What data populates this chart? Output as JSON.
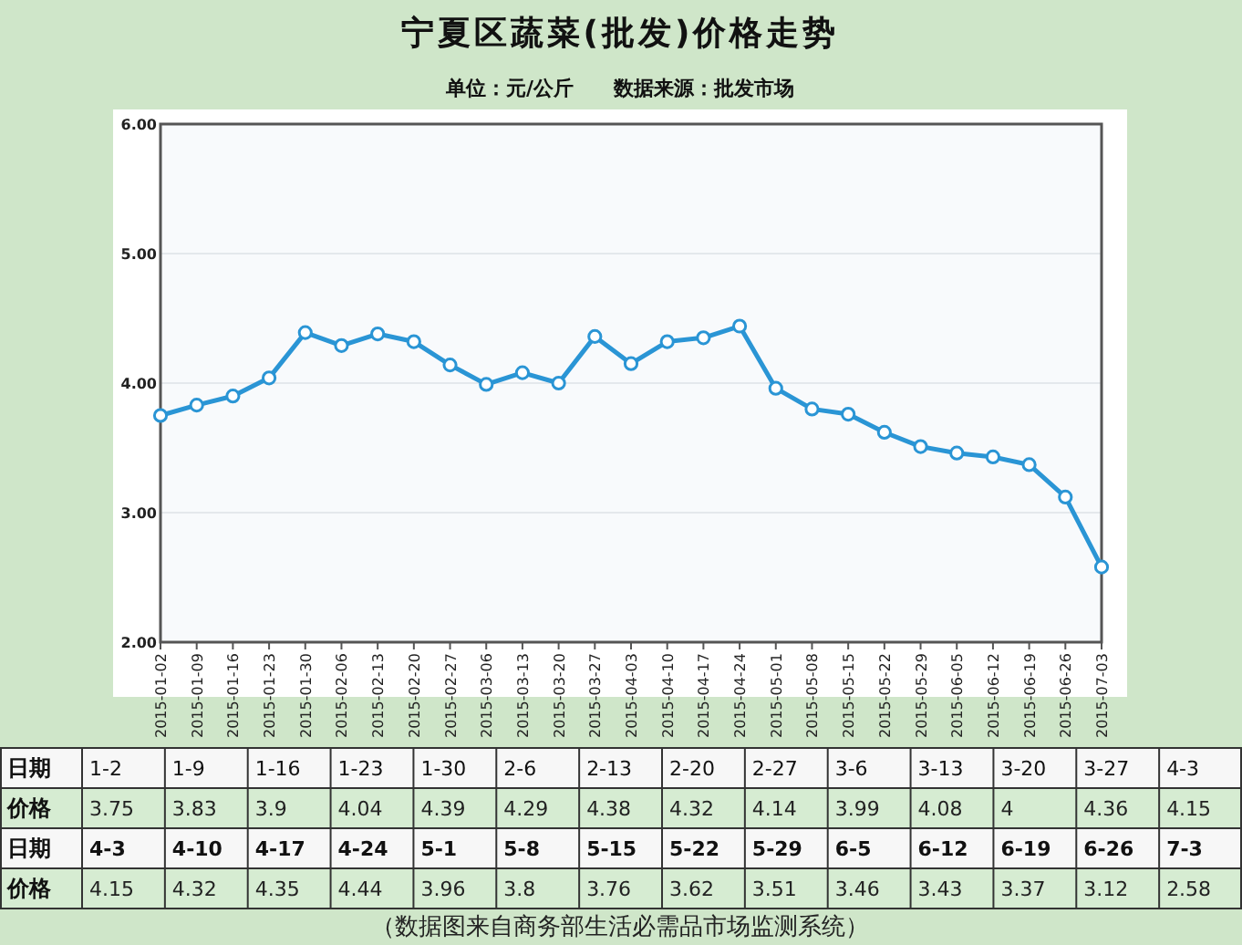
{
  "chart_data": [
    {
      "type": "line",
      "title": "宁夏区蔬菜(批发)价格走势",
      "subtitle": "单位：元/公斤　　数据来源：批发市场",
      "categories": [
        "2015-01-02",
        "2015-01-09",
        "2015-01-16",
        "2015-01-23",
        "2015-01-30",
        "2015-02-06",
        "2015-02-13",
        "2015-02-20",
        "2015-02-27",
        "2015-03-06",
        "2015-03-13",
        "2015-03-20",
        "2015-03-27",
        "2015-04-03",
        "2015-04-10",
        "2015-04-17",
        "2015-04-24",
        "2015-05-01",
        "2015-05-08",
        "2015-05-15",
        "2015-05-22",
        "2015-05-29",
        "2015-06-05",
        "2015-06-12",
        "2015-06-19",
        "2015-06-26",
        "2015-07-03"
      ],
      "series": [
        {
          "color": "#2a95d5",
          "values": [
            3.75,
            3.83,
            3.9,
            4.04,
            4.39,
            4.29,
            4.38,
            4.32,
            4.14,
            3.99,
            4.08,
            4,
            4.36,
            4.15,
            4.32,
            4.35,
            4.44,
            3.96,
            3.8,
            3.76,
            3.62,
            3.51,
            3.46,
            3.43,
            3.37,
            3.12,
            2.58
          ]
        }
      ],
      "ylim": [
        2,
        6
      ],
      "yticks": [
        {
          "value": 2,
          "label": "2.00"
        },
        {
          "value": 3,
          "label": "3.00"
        },
        {
          "value": 4,
          "label": "4.00"
        },
        {
          "value": 5,
          "label": "5.00"
        },
        {
          "value": 6,
          "label": "6.00"
        }
      ],
      "grid": "y",
      "marker": "circle"
    },
    {
      "type": "other",
      "categories": [
        "1-2",
        "1-9",
        "1-16",
        "1-23",
        "1-30",
        "2-6",
        "2-13",
        "2-20",
        "2-27",
        "3-6",
        "3-13",
        "3-20",
        "3-27",
        "4-3",
        "4-3",
        "4-10",
        "4-17",
        "4-24",
        "5-1",
        "5-8",
        "5-15",
        "5-22",
        "5-29",
        "6-5",
        "6-12",
        "6-19",
        "6-26",
        "7-3"
      ],
      "value_labels": [
        "3.75",
        "3.83",
        "3.9",
        "4.04",
        "4.39",
        "4.29",
        "4.38",
        "4.32",
        "4.14",
        "3.99",
        "4.08",
        "4",
        "4.36",
        "4.15",
        "4.15",
        "4.32",
        "4.35",
        "4.44",
        "3.96",
        "3.8",
        "3.76",
        "3.62",
        "3.51",
        "3.46",
        "3.43",
        "3.37",
        "3.12",
        "2.58"
      ],
      "xlabel": "日期",
      "ylabel": "价格",
      "annotations": [
        "（数据图来自商务部生活必需品市场监测系统）"
      ]
    }
  ]
}
